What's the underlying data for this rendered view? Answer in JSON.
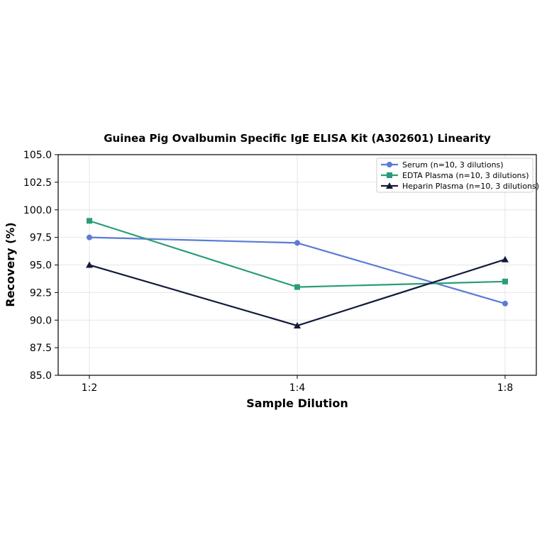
{
  "chart_data": {
    "type": "line",
    "title": "Guinea Pig Ovalbumin Specific IgE ELISA Kit (A302601) Linearity",
    "xlabel": "Sample Dilution",
    "ylabel": "Recovery (%)",
    "categories": [
      "1:2",
      "1:4",
      "1:8"
    ],
    "ylim": [
      85.0,
      105.0
    ],
    "yticks": [
      "85.0",
      "87.5",
      "90.0",
      "92.5",
      "95.0",
      "97.5",
      "100.0",
      "102.5",
      "105.0"
    ],
    "grid": true,
    "legend_position": "top-right",
    "series": [
      {
        "name": "Serum (n=10, 3 dilutions)",
        "values": [
          97.5,
          97.0,
          91.5
        ],
        "color": "#5b7bd5",
        "marker": "circle"
      },
      {
        "name": "EDTA Plasma (n=10, 3 dilutions)",
        "values": [
          99.0,
          93.0,
          93.5
        ],
        "color": "#2a9d78",
        "marker": "square"
      },
      {
        "name": "Heparin Plasma (n=10, 3 dilutions)",
        "values": [
          95.0,
          89.5,
          95.5
        ],
        "color": "#121a3a",
        "marker": "triangle"
      }
    ]
  }
}
